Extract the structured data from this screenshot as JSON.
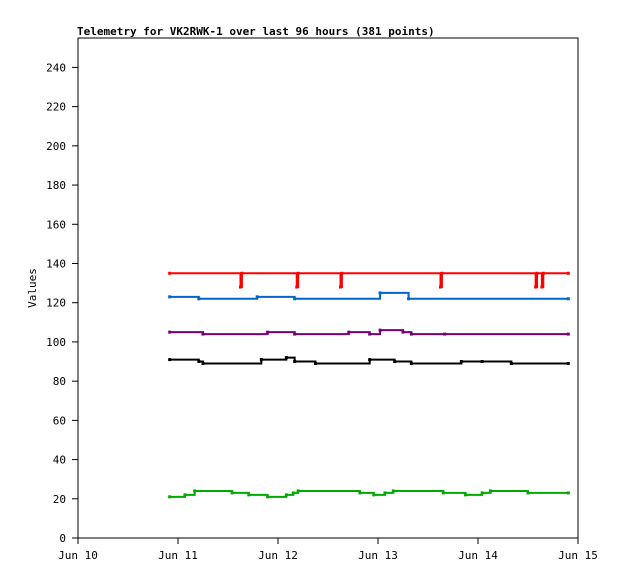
{
  "chart_data": {
    "type": "line",
    "title": "Telemetry for VK2RWK-1 over last 96 hours (381 points)",
    "xlabel": "",
    "ylabel": "Values",
    "ylim": [
      0,
      255
    ],
    "yticks": [
      0,
      20,
      40,
      60,
      80,
      100,
      120,
      140,
      160,
      180,
      200,
      220,
      240
    ],
    "xlim": [
      "Jun 10 00:00",
      "Jun 15 00:00"
    ],
    "xticks": [
      "Jun 10",
      "Jun 11",
      "Jun 12",
      "Jun 13",
      "Jun 14",
      "Jun 15"
    ],
    "grid": false,
    "series": [
      {
        "color": "#ff0000",
        "points": [
          [
            "Jun 10 22:00",
            135
          ],
          [
            "Jun 11 15:00",
            128
          ],
          [
            "Jun 11 15:20",
            135
          ],
          [
            "Jun 12 04:30",
            128
          ],
          [
            "Jun 12 04:50",
            135
          ],
          [
            "Jun 12 15:00",
            128
          ],
          [
            "Jun 12 15:20",
            135
          ],
          [
            "Jun 13 15:00",
            128
          ],
          [
            "Jun 13 15:20",
            135
          ],
          [
            "Jun 14 13:50",
            128
          ],
          [
            "Jun 14 14:10",
            135
          ],
          [
            "Jun 14 15:20",
            128
          ],
          [
            "Jun 14 15:40",
            135
          ],
          [
            "Jun 14 21:40",
            135
          ]
        ]
      },
      {
        "color": "#0066cc",
        "points": [
          [
            "Jun 10 22:00",
            123
          ],
          [
            "Jun 11 05:00",
            122
          ],
          [
            "Jun 11 19:00",
            123
          ],
          [
            "Jun 12 04:00",
            122
          ],
          [
            "Jun 13 00:30",
            125
          ],
          [
            "Jun 13 07:20",
            122
          ],
          [
            "Jun 14 21:40",
            122
          ]
        ]
      },
      {
        "color": "#770077",
        "points": [
          [
            "Jun 10 22:00",
            105
          ],
          [
            "Jun 11 06:00",
            104
          ],
          [
            "Jun 11 21:30",
            105
          ],
          [
            "Jun 12 04:00",
            104
          ],
          [
            "Jun 12 17:00",
            105
          ],
          [
            "Jun 12 22:00",
            104
          ],
          [
            "Jun 13 00:30",
            106
          ],
          [
            "Jun 13 06:00",
            105
          ],
          [
            "Jun 13 08:00",
            104
          ],
          [
            "Jun 13 16:00",
            104
          ],
          [
            "Jun 14 21:40",
            104
          ]
        ]
      },
      {
        "color": "#000000",
        "points": [
          [
            "Jun 10 22:00",
            91
          ],
          [
            "Jun 11 05:00",
            90
          ],
          [
            "Jun 11 06:00",
            89
          ],
          [
            "Jun 11 20:00",
            91
          ],
          [
            "Jun 12 02:00",
            92
          ],
          [
            "Jun 12 04:00",
            90
          ],
          [
            "Jun 12 09:00",
            89
          ],
          [
            "Jun 12 22:00",
            91
          ],
          [
            "Jun 13 04:00",
            90
          ],
          [
            "Jun 13 08:00",
            89
          ],
          [
            "Jun 13 20:00",
            90
          ],
          [
            "Jun 14 01:00",
            90
          ],
          [
            "Jun 14 08:00",
            89
          ],
          [
            "Jun 14 21:40",
            89
          ]
        ]
      },
      {
        "color": "#00aa00",
        "points": [
          [
            "Jun 10 22:00",
            21
          ],
          [
            "Jun 11 01:40",
            22
          ],
          [
            "Jun 11 04:00",
            24
          ],
          [
            "Jun 11 13:00",
            23
          ],
          [
            "Jun 11 17:00",
            22
          ],
          [
            "Jun 11 21:30",
            21
          ],
          [
            "Jun 12 02:00",
            22
          ],
          [
            "Jun 12 03:40",
            23
          ],
          [
            "Jun 12 04:50",
            24
          ],
          [
            "Jun 12 19:40",
            23
          ],
          [
            "Jun 12 23:00",
            22
          ],
          [
            "Jun 13 01:40",
            23
          ],
          [
            "Jun 13 03:40",
            24
          ],
          [
            "Jun 13 15:40",
            23
          ],
          [
            "Jun 13 21:00",
            22
          ],
          [
            "Jun 14 01:00",
            23
          ],
          [
            "Jun 14 03:00",
            24
          ],
          [
            "Jun 14 12:00",
            23
          ],
          [
            "Jun 14 21:40",
            23
          ]
        ]
      }
    ]
  }
}
